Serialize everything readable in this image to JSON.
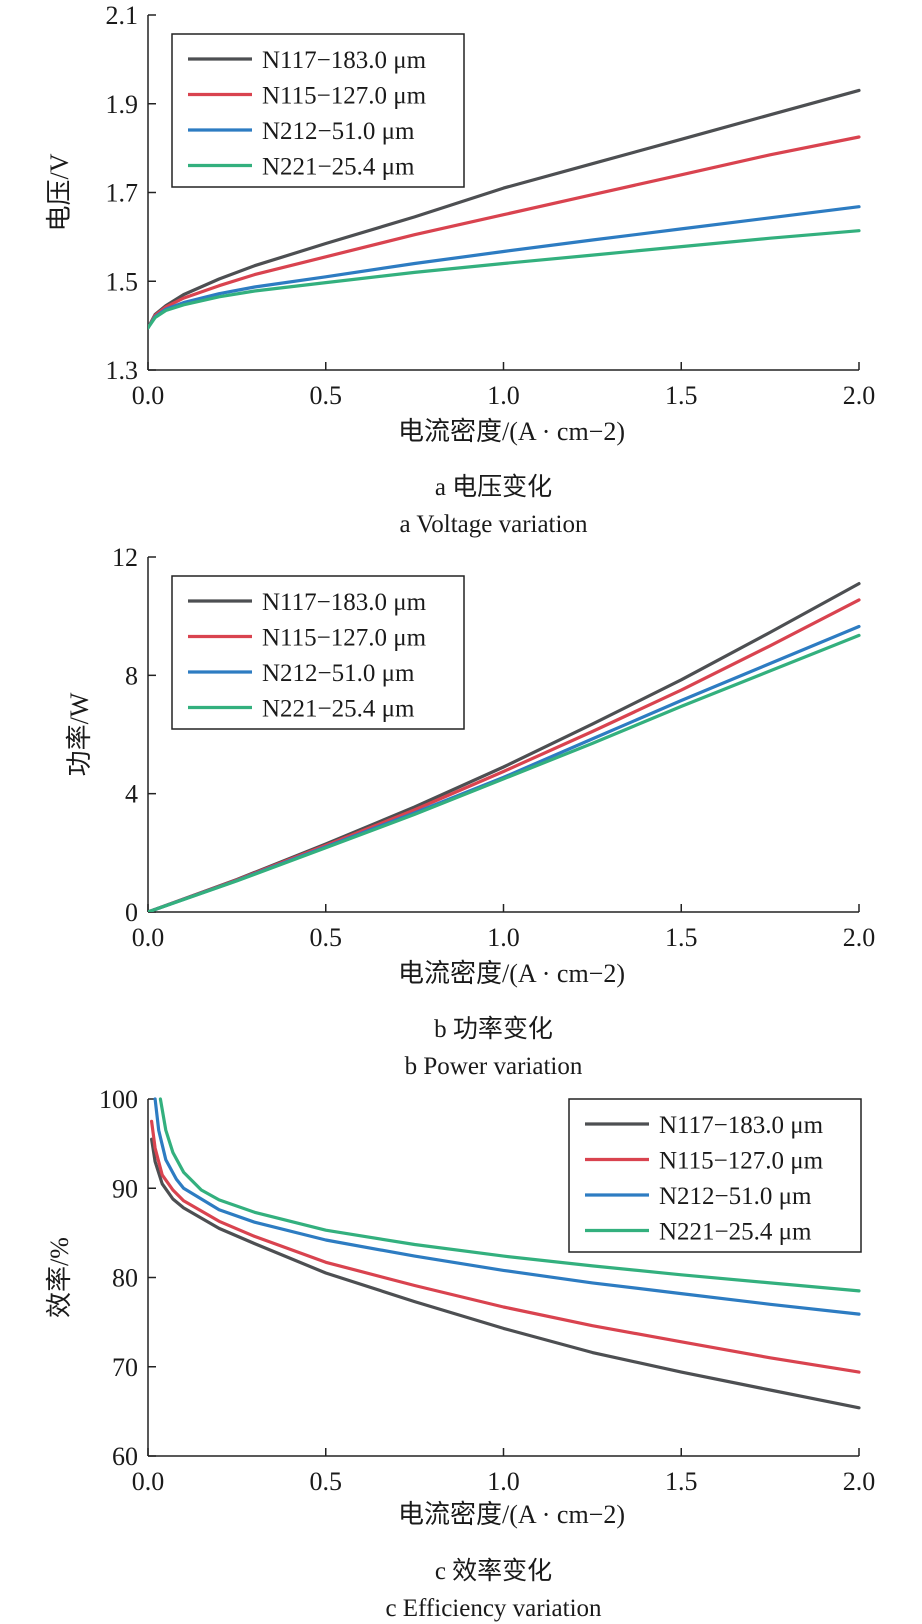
{
  "chart_data": [
    {
      "id": "voltage",
      "type": "line",
      "ylabel": "电压/V",
      "xlabel": "电流密度/(A · cm−2)",
      "caption_cn": "a  电压变化",
      "caption_en": "a  Voltage variation",
      "xlim": [
        0,
        2.0
      ],
      "ylim": [
        1.3,
        2.1
      ],
      "xticks": [
        "0.0",
        "0.5",
        "1.0",
        "1.5",
        "2.0"
      ],
      "yticks": [
        "1.3",
        "1.5",
        "1.7",
        "1.9",
        "2.1"
      ],
      "legend_position": "top-left",
      "series": [
        {
          "name": "N117−183.0 μm",
          "color": "#4d4f52",
          "x": [
            0.0,
            0.02,
            0.05,
            0.1,
            0.2,
            0.3,
            0.5,
            0.75,
            1.0,
            1.25,
            1.5,
            1.75,
            2.0
          ],
          "y": [
            1.395,
            1.425,
            1.445,
            1.47,
            1.505,
            1.535,
            1.585,
            1.645,
            1.71,
            1.765,
            1.82,
            1.875,
            1.93
          ]
        },
        {
          "name": "N115−127.0 μm",
          "color": "#d9434f",
          "x": [
            0.0,
            0.02,
            0.05,
            0.1,
            0.2,
            0.3,
            0.5,
            0.75,
            1.0,
            1.25,
            1.5,
            1.75,
            2.0
          ],
          "y": [
            1.395,
            1.423,
            1.442,
            1.462,
            1.49,
            1.515,
            1.555,
            1.605,
            1.65,
            1.695,
            1.74,
            1.785,
            1.825
          ]
        },
        {
          "name": "N212−51.0 μm",
          "color": "#2d7cc2",
          "x": [
            0.0,
            0.02,
            0.05,
            0.1,
            0.2,
            0.3,
            0.5,
            0.75,
            1.0,
            1.25,
            1.5,
            1.75,
            2.0
          ],
          "y": [
            1.395,
            1.42,
            1.437,
            1.452,
            1.472,
            1.487,
            1.51,
            1.54,
            1.567,
            1.593,
            1.618,
            1.643,
            1.668
          ]
        },
        {
          "name": "N221−25.4 μm",
          "color": "#33b07e",
          "x": [
            0.0,
            0.02,
            0.05,
            0.1,
            0.2,
            0.3,
            0.5,
            0.75,
            1.0,
            1.25,
            1.5,
            1.75,
            2.0
          ],
          "y": [
            1.395,
            1.418,
            1.434,
            1.447,
            1.465,
            1.478,
            1.497,
            1.52,
            1.54,
            1.559,
            1.578,
            1.597,
            1.614
          ]
        }
      ]
    },
    {
      "id": "power",
      "type": "line",
      "ylabel": "功率/W",
      "xlabel": "电流密度/(A · cm−2)",
      "caption_cn": "b  功率变化",
      "caption_en": "b  Power variation",
      "xlim": [
        0,
        2.0
      ],
      "ylim": [
        0,
        12
      ],
      "xticks": [
        "0.0",
        "0.5",
        "1.0",
        "1.5",
        "2.0"
      ],
      "yticks": [
        "0",
        "4",
        "8",
        "12"
      ],
      "legend_position": "top-left",
      "series": [
        {
          "name": "N117−183.0 μm",
          "color": "#4d4f52",
          "x": [
            0.0,
            0.25,
            0.5,
            0.75,
            1.0,
            1.25,
            1.5,
            1.75,
            2.0
          ],
          "y": [
            0.0,
            1.1,
            2.3,
            3.55,
            4.9,
            6.35,
            7.85,
            9.45,
            11.1
          ]
        },
        {
          "name": "N115−127.0 μm",
          "color": "#d9434f",
          "x": [
            0.0,
            0.25,
            0.5,
            0.75,
            1.0,
            1.25,
            1.5,
            1.75,
            2.0
          ],
          "y": [
            0.0,
            1.08,
            2.25,
            3.45,
            4.75,
            6.1,
            7.5,
            9.0,
            10.55
          ]
        },
        {
          "name": "N212−51.0 μm",
          "color": "#2d7cc2",
          "x": [
            0.0,
            0.25,
            0.5,
            0.75,
            1.0,
            1.25,
            1.5,
            1.75,
            2.0
          ],
          "y": [
            0.0,
            1.06,
            2.2,
            3.35,
            4.55,
            5.85,
            7.15,
            8.4,
            9.65
          ]
        },
        {
          "name": "N221−25.4 μm",
          "color": "#33b07e",
          "x": [
            0.0,
            0.25,
            0.5,
            0.75,
            1.0,
            1.25,
            1.5,
            1.75,
            2.0
          ],
          "y": [
            0.0,
            1.05,
            2.17,
            3.3,
            4.5,
            5.7,
            6.95,
            8.15,
            9.35
          ]
        }
      ]
    },
    {
      "id": "efficiency",
      "type": "line",
      "ylabel": "效率/%",
      "xlabel": "电流密度/(A · cm−2)",
      "caption_cn": "c  效率变化",
      "caption_en": "c  Efficiency variation",
      "xlim": [
        0,
        2.0
      ],
      "ylim": [
        60,
        100
      ],
      "xticks": [
        "0.0",
        "0.5",
        "1.0",
        "1.5",
        "2.0"
      ],
      "yticks": [
        "60",
        "70",
        "80",
        "90",
        "100"
      ],
      "legend_position": "top-right",
      "series": [
        {
          "name": "N117−183.0 μm",
          "color": "#4d4f52",
          "x": [
            0.01,
            0.02,
            0.04,
            0.07,
            0.1,
            0.2,
            0.3,
            0.5,
            0.75,
            1.0,
            1.25,
            1.5,
            1.75,
            2.0
          ],
          "y": [
            95.5,
            93.0,
            90.5,
            88.8,
            87.8,
            85.5,
            83.8,
            80.5,
            77.3,
            74.3,
            71.6,
            69.4,
            67.4,
            65.4
          ]
        },
        {
          "name": "N115−127.0 μm",
          "color": "#d9434f",
          "x": [
            0.01,
            0.02,
            0.04,
            0.07,
            0.1,
            0.2,
            0.3,
            0.5,
            0.75,
            1.0,
            1.25,
            1.5,
            1.75,
            2.0
          ],
          "y": [
            97.5,
            94.5,
            91.5,
            89.8,
            88.6,
            86.3,
            84.6,
            81.7,
            79.1,
            76.7,
            74.6,
            72.8,
            71.0,
            69.4
          ]
        },
        {
          "name": "N212−51.0 μm",
          "color": "#2d7cc2",
          "x": [
            0.02,
            0.03,
            0.05,
            0.08,
            0.1,
            0.2,
            0.3,
            0.5,
            0.75,
            1.0,
            1.25,
            1.5,
            1.75,
            2.0
          ],
          "y": [
            100.0,
            96.5,
            93.2,
            91.0,
            90.0,
            87.6,
            86.2,
            84.2,
            82.4,
            80.8,
            79.4,
            78.2,
            77.0,
            75.9
          ]
        },
        {
          "name": "N221−25.4 μm",
          "color": "#33b07e",
          "x": [
            0.035,
            0.05,
            0.07,
            0.1,
            0.15,
            0.2,
            0.3,
            0.5,
            0.75,
            1.0,
            1.25,
            1.5,
            1.75,
            2.0
          ],
          "y": [
            100.0,
            96.5,
            94.0,
            91.8,
            89.8,
            88.7,
            87.3,
            85.3,
            83.7,
            82.4,
            81.3,
            80.3,
            79.4,
            78.5
          ]
        }
      ]
    }
  ]
}
